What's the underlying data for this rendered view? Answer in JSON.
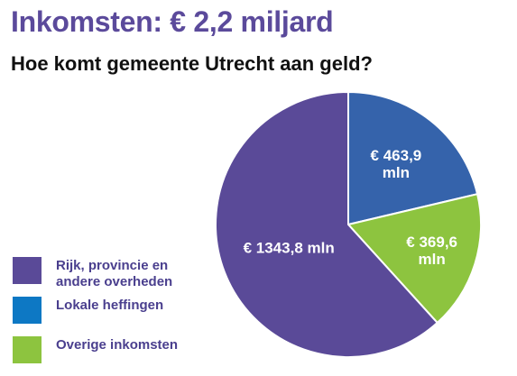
{
  "title": "Inkomsten: € 2,2 miljard",
  "subtitle": "Hoe komt gemeente Utrecht aan geld?",
  "chart_data": {
    "type": "pie",
    "categories": [
      "Rijk, provincie en andere overheden",
      "Lokale heffingen",
      "Overige inkomsten"
    ],
    "values": [
      1343.8,
      463.9,
      369.6
    ],
    "unit": "mln",
    "currency": "€",
    "slice_labels": [
      "€ 1343,8 mln",
      "€ 463,9 mln",
      "€ 369,6 mln"
    ],
    "slice_colors": [
      "#5a4a98",
      "#3563ab",
      "#8dc43f"
    ],
    "legend_colors": [
      "#5a4a98",
      "#0d78c4",
      "#8dc43f"
    ],
    "legend": [
      {
        "line1": "Rijk, provincie en",
        "line2": "andere overheden"
      },
      {
        "line1": "Lokale heffingen",
        "line2": ""
      },
      {
        "line1": "Overige inkomsten",
        "line2": ""
      }
    ],
    "legend_placement": "bottom-left"
  }
}
